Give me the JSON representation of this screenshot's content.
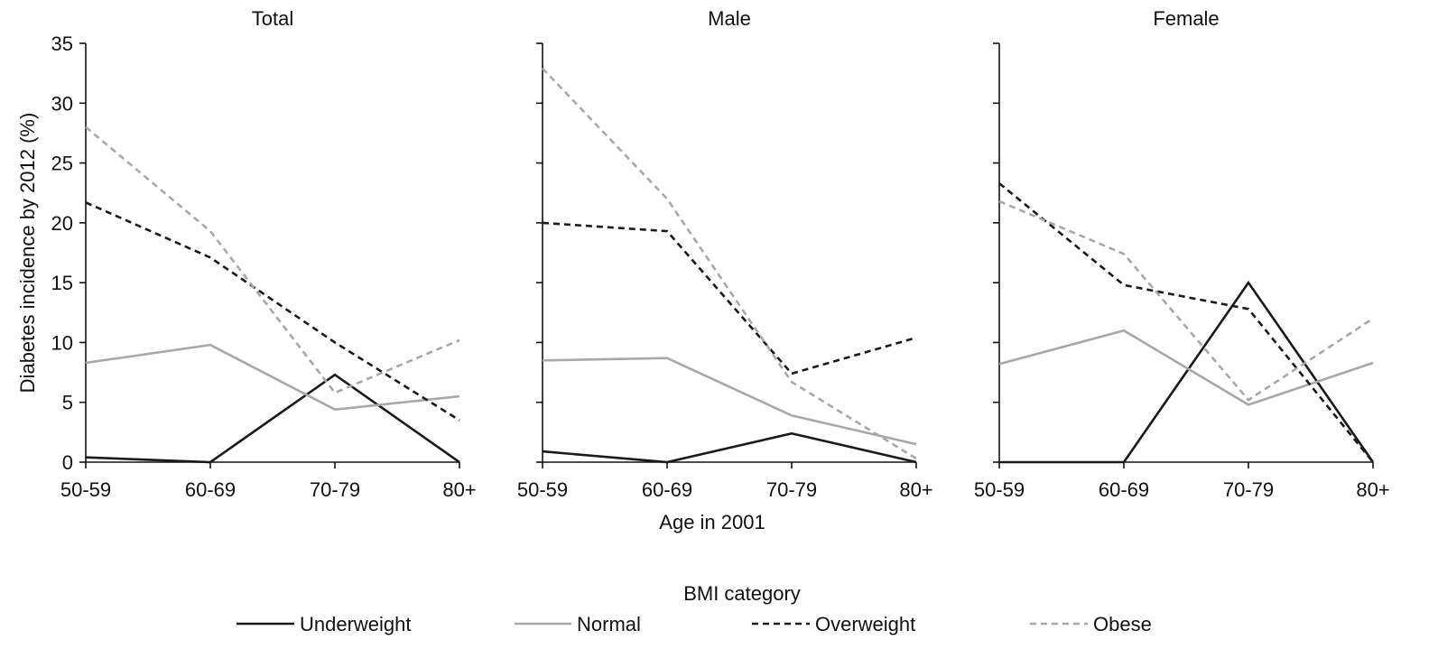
{
  "chart_data": {
    "type": "line",
    "ylabel": "Diabetes incidence by 2012 (%)",
    "xlabel": "Age in 2001",
    "categories": [
      "50-59",
      "60-69",
      "70-79",
      "80+"
    ],
    "ylim": [
      0,
      35
    ],
    "yticks": [
      0,
      5,
      10,
      15,
      20,
      25,
      30,
      35
    ],
    "grid": false,
    "legend": {
      "title": "BMI category",
      "placement": "bottom",
      "entries": [
        "Underweight",
        "Normal",
        "Overweight",
        "Obese"
      ]
    },
    "series_styles": [
      {
        "name": "Underweight",
        "color": "#1a1a1a",
        "dash": "solid"
      },
      {
        "name": "Normal",
        "color": "#a8a8a8",
        "dash": "solid"
      },
      {
        "name": "Overweight",
        "color": "#1a1a1a",
        "dash": "dashed"
      },
      {
        "name": "Obese",
        "color": "#a8a8a8",
        "dash": "dashed"
      }
    ],
    "panels": [
      {
        "title": "Total",
        "series": [
          {
            "name": "Underweight",
            "values": [
              0.4,
              0.0,
              7.3,
              0.0
            ]
          },
          {
            "name": "Normal",
            "values": [
              8.3,
              9.8,
              4.4,
              5.5
            ]
          },
          {
            "name": "Overweight",
            "values": [
              21.7,
              17.1,
              10.0,
              3.5
            ]
          },
          {
            "name": "Obese",
            "values": [
              28.0,
              19.3,
              5.8,
              10.2
            ]
          }
        ]
      },
      {
        "title": "Male",
        "series": [
          {
            "name": "Underweight",
            "values": [
              0.9,
              0.0,
              2.4,
              0.0
            ]
          },
          {
            "name": "Normal",
            "values": [
              8.5,
              8.7,
              3.9,
              1.5
            ]
          },
          {
            "name": "Overweight",
            "values": [
              20.0,
              19.3,
              7.4,
              10.4
            ]
          },
          {
            "name": "Obese",
            "values": [
              32.9,
              22.0,
              6.7,
              0.3
            ]
          }
        ]
      },
      {
        "title": "Female",
        "series": [
          {
            "name": "Underweight",
            "values": [
              0.0,
              0.0,
              15.0,
              0.0
            ]
          },
          {
            "name": "Normal",
            "values": [
              8.2,
              11.0,
              4.8,
              8.3
            ]
          },
          {
            "name": "Overweight",
            "values": [
              23.3,
              14.8,
              12.8,
              0.0
            ]
          },
          {
            "name": "Obese",
            "values": [
              21.8,
              17.4,
              5.2,
              12.0
            ]
          }
        ]
      }
    ]
  }
}
